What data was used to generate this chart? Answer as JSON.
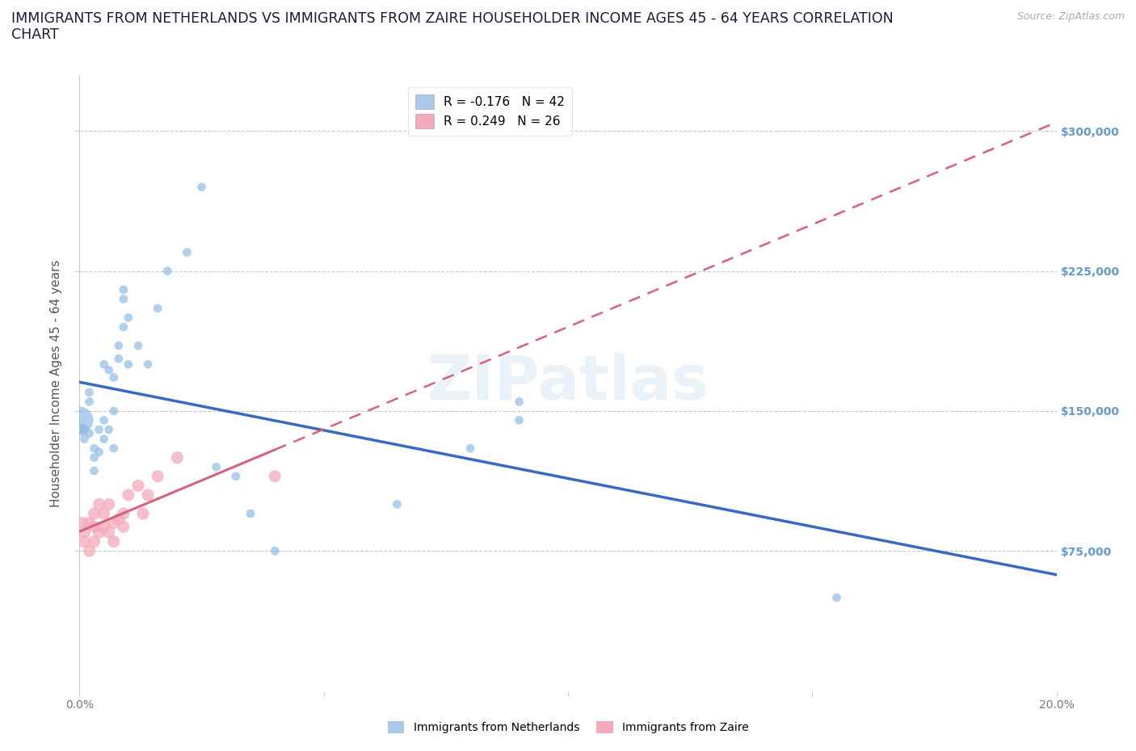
{
  "title_line1": "IMMIGRANTS FROM NETHERLANDS VS IMMIGRANTS FROM ZAIRE HOUSEHOLDER INCOME AGES 45 - 64 YEARS CORRELATION",
  "title_line2": "CHART",
  "source_text": "Source: ZipAtlas.com",
  "ylabel": "Householder Income Ages 45 - 64 years",
  "xlim": [
    0.0,
    0.2
  ],
  "ylim": [
    0,
    330000
  ],
  "yticks": [
    75000,
    150000,
    225000,
    300000
  ],
  "ytick_labels": [
    "$75,000",
    "$150,000",
    "$225,000",
    "$300,000"
  ],
  "xticks": [
    0.0,
    0.05,
    0.1,
    0.15,
    0.2
  ],
  "xtick_labels": [
    "0.0%",
    "",
    "",
    "",
    "20.0%"
  ],
  "legend_entries": [
    {
      "label": "R = -0.176   N = 42",
      "color": "#aac8e8"
    },
    {
      "label": "R = 0.249   N = 26",
      "color": "#f4aabb"
    }
  ],
  "watermark": "ZIPatlas",
  "netherlands_color": "#90bce8",
  "zaire_color": "#f4aabb",
  "netherlands_line_color": "#3a6abf",
  "zaire_line_color": "#d9607a",
  "background_color": "#ffffff",
  "grid_color": "#c8c8c8",
  "right_ytick_color": "#6699cc",
  "netherlands_x": [
    0.0005,
    0.001,
    0.001,
    0.002,
    0.002,
    0.002,
    0.003,
    0.003,
    0.003,
    0.004,
    0.004,
    0.005,
    0.005,
    0.005,
    0.006,
    0.006,
    0.007,
    0.007,
    0.007,
    0.008,
    0.008,
    0.009,
    0.009,
    0.009,
    0.01,
    0.01,
    0.012,
    0.014,
    0.016,
    0.018,
    0.022,
    0.025,
    0.028,
    0.032,
    0.035,
    0.04,
    0.065,
    0.08,
    0.09,
    0.09,
    0.155,
    0.0
  ],
  "netherlands_y": [
    140000,
    140000,
    135000,
    138000,
    160000,
    155000,
    130000,
    125000,
    118000,
    128000,
    140000,
    145000,
    135000,
    175000,
    172000,
    140000,
    168000,
    150000,
    130000,
    185000,
    178000,
    210000,
    195000,
    215000,
    175000,
    200000,
    185000,
    175000,
    205000,
    225000,
    235000,
    270000,
    120000,
    115000,
    95000,
    75000,
    100000,
    130000,
    155000,
    145000,
    50000,
    145000
  ],
  "netherlands_sizes": [
    120,
    60,
    60,
    60,
    60,
    60,
    60,
    60,
    60,
    60,
    60,
    60,
    60,
    60,
    60,
    60,
    60,
    60,
    60,
    60,
    60,
    60,
    60,
    60,
    60,
    60,
    60,
    60,
    60,
    60,
    60,
    60,
    60,
    60,
    60,
    60,
    60,
    60,
    60,
    60,
    60,
    600
  ],
  "zaire_x": [
    0.0005,
    0.001,
    0.001,
    0.002,
    0.002,
    0.003,
    0.003,
    0.003,
    0.004,
    0.004,
    0.005,
    0.005,
    0.006,
    0.006,
    0.007,
    0.007,
    0.008,
    0.009,
    0.009,
    0.01,
    0.012,
    0.013,
    0.014,
    0.016,
    0.02,
    0.04
  ],
  "zaire_y": [
    90000,
    85000,
    80000,
    75000,
    90000,
    95000,
    88000,
    80000,
    100000,
    85000,
    88000,
    95000,
    100000,
    85000,
    90000,
    80000,
    92000,
    88000,
    95000,
    105000,
    110000,
    95000,
    105000,
    115000,
    125000,
    115000
  ],
  "title_fontsize": 12.5,
  "axis_label_fontsize": 11,
  "tick_fontsize": 10
}
